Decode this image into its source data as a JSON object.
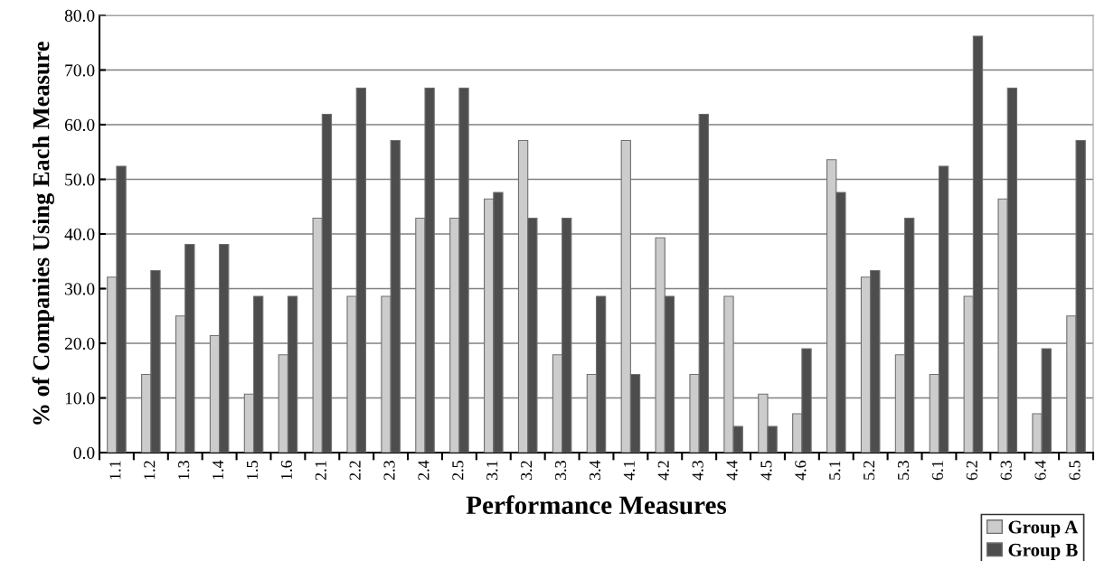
{
  "chart_data": {
    "type": "bar",
    "xlabel": "Performance Measures",
    "ylabel": "% of Companies Using Each Measure",
    "categories": [
      "1.1",
      "1.2",
      "1.3",
      "1.4",
      "1.5",
      "1.6",
      "2.1",
      "2.2",
      "2.3",
      "2.4",
      "2.5",
      "3.1",
      "3.2",
      "3.3",
      "3.4",
      "4.1",
      "4.2",
      "4.3",
      "4.4",
      "4.5",
      "4.6",
      "5.1",
      "5.2",
      "5.3",
      "6.1",
      "6.2",
      "6.3",
      "6.4",
      "6.5"
    ],
    "series": [
      {
        "name": "Group A",
        "color": "#cccccc",
        "values": [
          32.1,
          14.3,
          25.0,
          21.4,
          10.7,
          17.9,
          42.9,
          28.6,
          28.6,
          42.9,
          42.9,
          46.4,
          57.1,
          17.9,
          14.3,
          57.1,
          39.3,
          14.3,
          28.6,
          10.7,
          7.1,
          53.6,
          32.1,
          17.9,
          14.3,
          28.6,
          46.4,
          7.1,
          25.0
        ]
      },
      {
        "name": "Group B",
        "color": "#4d4d4d",
        "values": [
          52.4,
          33.3,
          38.1,
          38.1,
          28.6,
          28.6,
          61.9,
          66.7,
          57.1,
          66.7,
          66.7,
          47.6,
          42.9,
          42.9,
          28.6,
          14.3,
          28.6,
          61.9,
          4.8,
          4.8,
          19.0,
          47.6,
          33.3,
          42.9,
          52.4,
          76.2,
          66.7,
          19.0,
          57.1
        ]
      }
    ],
    "ylim": [
      0,
      80
    ],
    "yticks": [
      {
        "value": 0,
        "label": "0.0"
      },
      {
        "value": 10,
        "label": "10.0"
      },
      {
        "value": 20,
        "label": "20.0"
      },
      {
        "value": 30,
        "label": "30.0"
      },
      {
        "value": 40,
        "label": "40.0"
      },
      {
        "value": 50,
        "label": "50.0"
      },
      {
        "value": 60,
        "label": "60.0"
      },
      {
        "value": 70,
        "label": "70.0"
      },
      {
        "value": 80,
        "label": "80.0"
      }
    ],
    "grid": "y",
    "legend": "bottom right"
  }
}
